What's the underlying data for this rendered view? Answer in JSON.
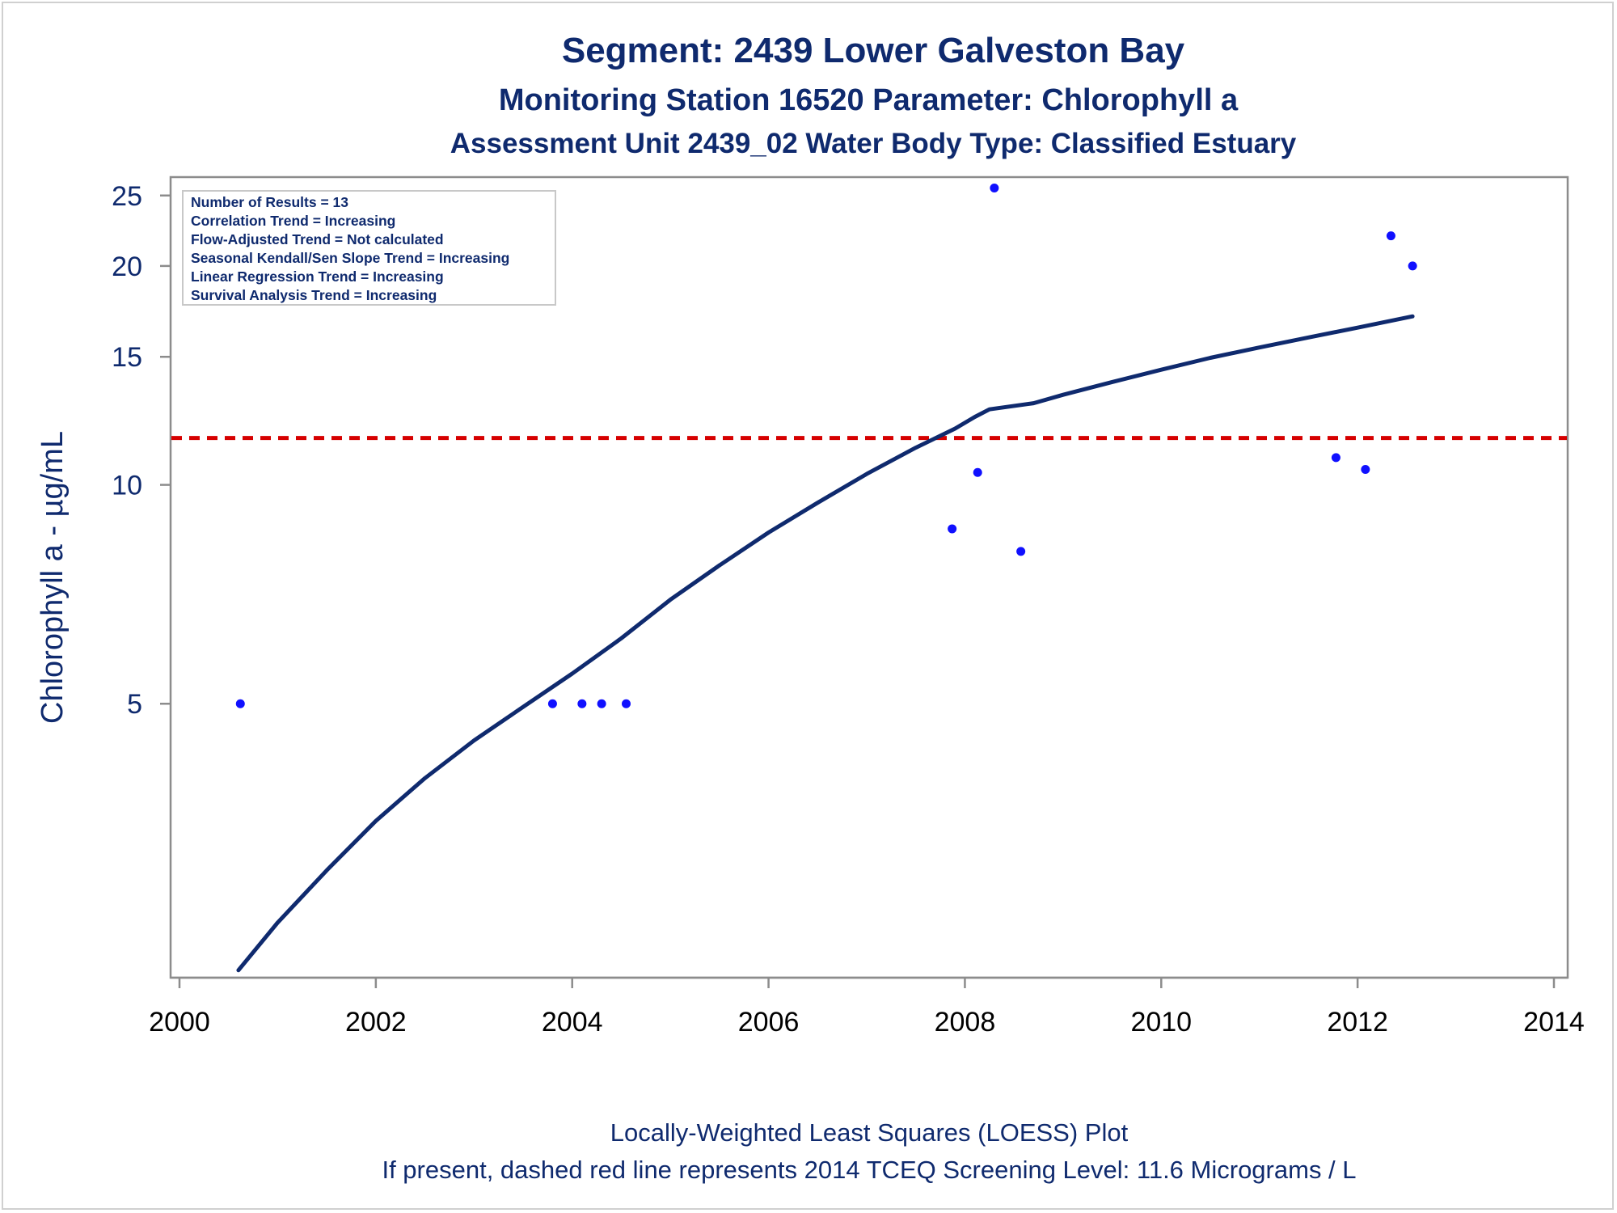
{
  "chart_data": {
    "type": "scatter",
    "title": "Segment: 2439  Lower Galveston Bay",
    "subtitle_1": "Monitoring Station 16520 Parameter: Chlorophyll a",
    "subtitle_2": "Assessment Unit 2439_02   Water Body Type: Classified Estuary",
    "xlabel": "",
    "ylabel": "Chlorophyll a -  µg/mL",
    "y_scale": "log",
    "xlim": [
      2000,
      2014
    ],
    "ylim": [
      2.1,
      26.5
    ],
    "x_ticks": [
      "2000",
      "2002",
      "2004",
      "2006",
      "2008",
      "2010",
      "2012",
      "2014"
    ],
    "y_ticks": [
      "5",
      "10",
      "15",
      "20",
      "25"
    ],
    "grid": false,
    "inset_box": [
      "Number of Results = 13",
      "Correlation Trend = Increasing",
      "Flow-Adjusted Trend = Not calculated",
      "Seasonal Kendall/Sen Slope Trend = Increasing",
      "Linear Regression Trend = Increasing",
      "Survival Analysis Trend = Increasing"
    ],
    "inset_placement": "top-left",
    "series": [
      {
        "type": "scatter",
        "color": "#1010ff",
        "points": [
          {
            "x": 2000.62,
            "y": 5.0
          },
          {
            "x": 2003.8,
            "y": 5.0
          },
          {
            "x": 2004.1,
            "y": 5.0
          },
          {
            "x": 2004.3,
            "y": 5.0
          },
          {
            "x": 2004.55,
            "y": 5.0
          },
          {
            "x": 2007.87,
            "y": 8.7
          },
          {
            "x": 2008.13,
            "y": 10.4
          },
          {
            "x": 2008.3,
            "y": 25.6
          },
          {
            "x": 2008.57,
            "y": 8.1
          },
          {
            "x": 2011.78,
            "y": 10.9
          },
          {
            "x": 2012.08,
            "y": 10.5
          },
          {
            "x": 2012.34,
            "y": 22.0
          },
          {
            "x": 2012.56,
            "y": 20.0
          }
        ]
      },
      {
        "type": "line",
        "color": "#0f2a6e",
        "points": [
          {
            "x": 2000.6,
            "y": 2.15
          },
          {
            "x": 2001.0,
            "y": 2.5
          },
          {
            "x": 2001.5,
            "y": 2.95
          },
          {
            "x": 2002.0,
            "y": 3.45
          },
          {
            "x": 2002.5,
            "y": 3.95
          },
          {
            "x": 2003.0,
            "y": 4.45
          },
          {
            "x": 2003.5,
            "y": 4.95
          },
          {
            "x": 2004.0,
            "y": 5.5
          },
          {
            "x": 2004.5,
            "y": 6.15
          },
          {
            "x": 2005.0,
            "y": 6.95
          },
          {
            "x": 2005.5,
            "y": 7.75
          },
          {
            "x": 2006.0,
            "y": 8.6
          },
          {
            "x": 2006.5,
            "y": 9.45
          },
          {
            "x": 2007.0,
            "y": 10.35
          },
          {
            "x": 2007.5,
            "y": 11.25
          },
          {
            "x": 2007.9,
            "y": 11.95
          },
          {
            "x": 2008.1,
            "y": 12.4
          },
          {
            "x": 2008.25,
            "y": 12.7
          },
          {
            "x": 2008.7,
            "y": 12.95
          },
          {
            "x": 2009.0,
            "y": 13.3
          },
          {
            "x": 2009.5,
            "y": 13.85
          },
          {
            "x": 2010.0,
            "y": 14.4
          },
          {
            "x": 2010.5,
            "y": 14.95
          },
          {
            "x": 2011.0,
            "y": 15.45
          },
          {
            "x": 2011.5,
            "y": 15.95
          },
          {
            "x": 2012.0,
            "y": 16.45
          },
          {
            "x": 2012.56,
            "y": 17.05
          }
        ]
      },
      {
        "type": "hline",
        "color": "#d60000",
        "y": 11.6,
        "style": "dashed"
      }
    ],
    "footnote_1": "Locally-Weighted Least Squares (LOESS) Plot",
    "footnote_2": "If present, dashed red line represents 2014 TCEQ Screening Level: 11.6 Micrograms / L"
  }
}
